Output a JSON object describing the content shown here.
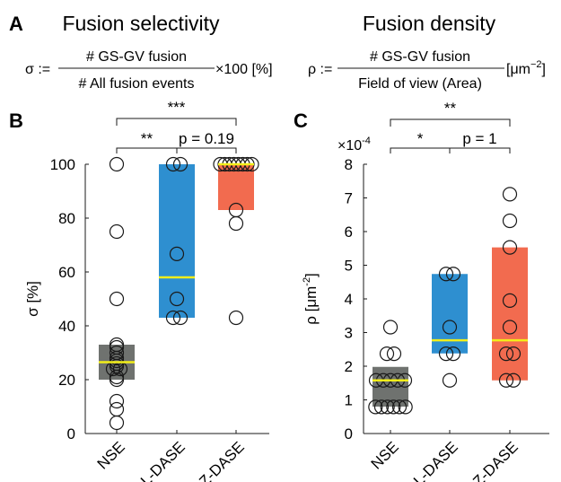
{
  "panel_a": {
    "letter": "A",
    "left": {
      "title": "Fusion selectivity",
      "lhs": "σ :=",
      "numerator": "# GS-GV fusion",
      "denominator": "# All fusion events",
      "suffix": "×100 [%]"
    },
    "right": {
      "title": "Fusion density",
      "lhs": "ρ :=",
      "numerator": "# GS-GV fusion",
      "denominator": "Field of view (Area)",
      "suffix_main": "[μm",
      "suffix_sup": "−2",
      "suffix_end": "]"
    }
  },
  "chart_data": [
    {
      "panel": "B",
      "type": "box",
      "ylabel": "σ  [%]",
      "ylim": [
        0,
        100
      ],
      "yticks": [
        "0",
        "20",
        "40",
        "60",
        "80",
        "100"
      ],
      "categories": [
        "NSE",
        "L-DASE",
        "Z-DASE"
      ],
      "colors": {
        "NSE": "#6f726f",
        "L-DASE": "#2e8fd0",
        "Z-DASE": "#f26b4f",
        "median": "#f2ee1a"
      },
      "boxes": [
        {
          "category": "NSE",
          "q1": 20,
          "median": 26.5,
          "q3": 33
        },
        {
          "category": "L-DASE",
          "q1": 43,
          "median": 58,
          "q3": 100
        },
        {
          "category": "Z-DASE",
          "q1": 83,
          "median": 100,
          "q3": 100
        }
      ],
      "points": [
        {
          "category": "NSE",
          "values": [
            100,
            75,
            50,
            33,
            32,
            30,
            28,
            27,
            26,
            25,
            24,
            24,
            21,
            20,
            12,
            9,
            4
          ]
        },
        {
          "category": "L-DASE",
          "values": [
            100,
            100,
            66.7,
            50,
            43,
            43
          ]
        },
        {
          "category": "Z-DASE",
          "values": [
            100,
            100,
            100,
            100,
            100,
            100,
            100,
            100,
            83,
            78,
            43
          ]
        }
      ],
      "significance": [
        {
          "from": "NSE",
          "to": "Z-DASE",
          "label": "***"
        },
        {
          "from": "NSE",
          "to": "L-DASE",
          "label": "**"
        },
        {
          "from": "L-DASE",
          "to": "Z-DASE",
          "label": "p = 0.19"
        }
      ]
    },
    {
      "panel": "C",
      "type": "box",
      "ylabel": "ρ  [μm",
      "ylabel_sup": "-2",
      "ylabel_end": "]",
      "exponent_prefix": "×10",
      "exponent_sup": "-4",
      "ylim": [
        0,
        8
      ],
      "yticks": [
        "0",
        "1",
        "2",
        "3",
        "4",
        "5",
        "6",
        "7",
        "8"
      ],
      "categories": [
        "NSE",
        "L-DASE",
        "Z-DASE"
      ],
      "colors": {
        "NSE": "#6f726f",
        "L-DASE": "#2e8fd0",
        "Z-DASE": "#f26b4f",
        "median": "#f2ee1a"
      },
      "boxes": [
        {
          "category": "NSE",
          "q1": 0.8,
          "median": 1.58,
          "q3": 1.98
        },
        {
          "category": "L-DASE",
          "q1": 2.38,
          "median": 2.77,
          "q3": 4.74
        },
        {
          "category": "Z-DASE",
          "q1": 1.58,
          "median": 2.77,
          "q3": 5.53
        }
      ],
      "points": [
        {
          "category": "NSE",
          "values": [
            3.16,
            2.37,
            2.37,
            1.58,
            1.58,
            1.58,
            1.58,
            1.58,
            0.79,
            0.79,
            0.79,
            0.79,
            0.79,
            0.79
          ]
        },
        {
          "category": "L-DASE",
          "values": [
            4.74,
            4.74,
            3.16,
            2.37,
            2.37,
            1.58
          ]
        },
        {
          "category": "Z-DASE",
          "values": [
            7.11,
            6.32,
            5.53,
            3.95,
            3.16,
            2.37,
            2.37,
            1.58,
            1.58
          ]
        }
      ],
      "significance": [
        {
          "from": "NSE",
          "to": "Z-DASE",
          "label": "**"
        },
        {
          "from": "NSE",
          "to": "L-DASE",
          "label": "*"
        },
        {
          "from": "L-DASE",
          "to": "Z-DASE",
          "label": "p = 1"
        }
      ]
    }
  ]
}
